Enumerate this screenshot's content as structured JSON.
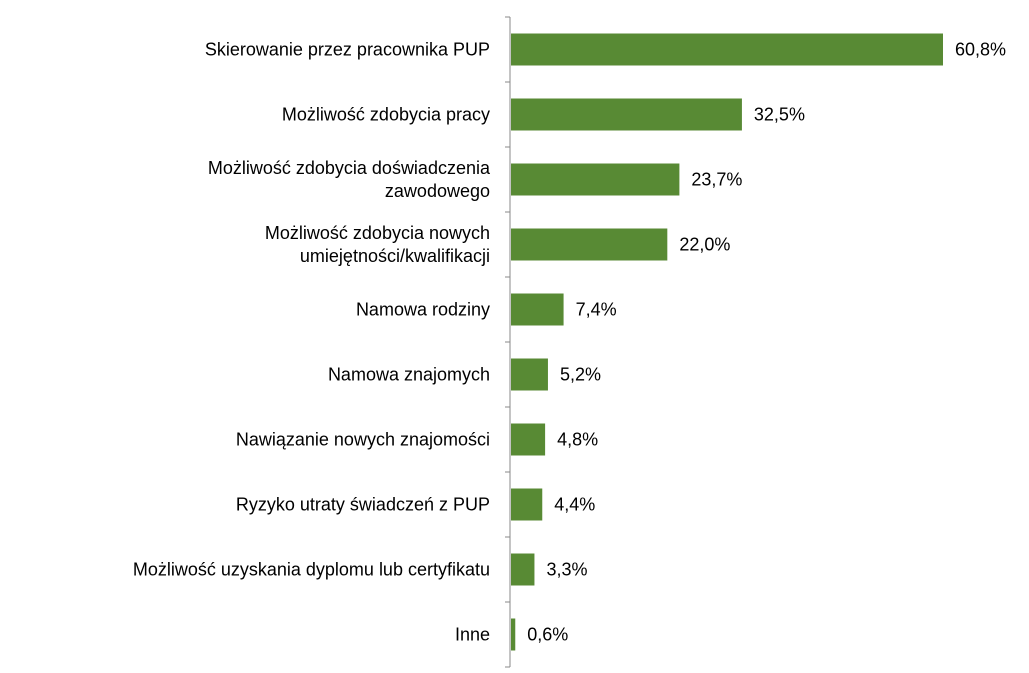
{
  "chart_data": {
    "type": "bar",
    "orientation": "horizontal",
    "categories": [
      "Skierowanie przez pracownika PUP",
      "Możliwość zdobycia pracy",
      "Możliwość zdobycia doświadczenia\nzawodowego",
      "Możliwość zdobycia nowych\numiejętności/kwalifikacji",
      "Namowa rodziny",
      "Namowa znajomych",
      "Nawiązanie nowych znajomości",
      "Ryzyko utraty świadczeń z PUP",
      "Możliwość uzyskania dyplomu lub certyfikatu",
      "Inne"
    ],
    "values": [
      60.8,
      32.5,
      23.7,
      22.0,
      7.4,
      5.2,
      4.8,
      4.4,
      3.3,
      0.6
    ],
    "value_labels": [
      "60,8%",
      "32,5%",
      "23,7%",
      "22,0%",
      "7,4%",
      "5,2%",
      "4,8%",
      "4,4%",
      "3,3%",
      "0,6%"
    ],
    "color": "#588a34"
  }
}
